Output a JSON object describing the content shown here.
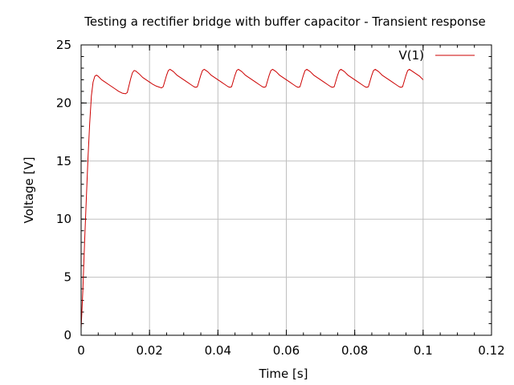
{
  "chart_data": {
    "type": "line",
    "title": "Testing a rectifier bridge with buffer capacitor - Transient response",
    "xlabel": "Time [s]",
    "ylabel": "Voltage [V]",
    "xlim": [
      0,
      0.12
    ],
    "ylim": [
      0,
      25
    ],
    "xticks": [
      0,
      0.02,
      0.04,
      0.06,
      0.08,
      0.1,
      0.12
    ],
    "xtick_labels": [
      "0",
      "0.02",
      "0.04",
      "0.06",
      "0.08",
      "0.1",
      "0.12"
    ],
    "yticks": [
      0,
      5,
      10,
      15,
      20,
      25
    ],
    "ytick_labels": [
      "0",
      "5",
      "10",
      "15",
      "20",
      "25"
    ],
    "grid": true,
    "legend_position": "top-right",
    "series": [
      {
        "name": "V(1)",
        "color": "#cc0000",
        "x": [
          0,
          0.0005,
          0.001,
          0.0015,
          0.002,
          0.0025,
          0.003,
          0.0035,
          0.004,
          0.0045,
          0.005,
          0.006,
          0.007,
          0.008,
          0.009,
          0.01,
          0.011,
          0.012,
          0.013,
          0.0135,
          0.014,
          0.0145,
          0.015,
          0.0155,
          0.016,
          0.017,
          0.018,
          0.019,
          0.02,
          0.021,
          0.022,
          0.023,
          0.0235,
          0.024,
          0.0245,
          0.025,
          0.0255,
          0.026,
          0.027,
          0.028,
          0.029,
          0.03,
          0.031,
          0.032,
          0.033,
          0.0335,
          0.034,
          0.0345,
          0.035,
          0.0355,
          0.036,
          0.037,
          0.038,
          0.039,
          0.04,
          0.041,
          0.042,
          0.043,
          0.0435,
          0.044,
          0.0445,
          0.045,
          0.0455,
          0.046,
          0.047,
          0.048,
          0.049,
          0.05,
          0.051,
          0.052,
          0.053,
          0.0535,
          0.054,
          0.0545,
          0.055,
          0.0555,
          0.056,
          0.057,
          0.058,
          0.059,
          0.06,
          0.061,
          0.062,
          0.063,
          0.0635,
          0.064,
          0.0645,
          0.065,
          0.0655,
          0.066,
          0.067,
          0.068,
          0.069,
          0.07,
          0.071,
          0.072,
          0.073,
          0.0735,
          0.074,
          0.0745,
          0.075,
          0.0755,
          0.076,
          0.077,
          0.078,
          0.079,
          0.08,
          0.081,
          0.082,
          0.083,
          0.0835,
          0.084,
          0.0845,
          0.085,
          0.0855,
          0.086,
          0.087,
          0.088,
          0.089,
          0.09,
          0.091,
          0.092,
          0.093,
          0.0935,
          0.094,
          0.0945,
          0.095,
          0.0955,
          0.096,
          0.097,
          0.098,
          0.099,
          0.1
        ],
        "y": [
          0.6,
          3.8,
          7.9,
          11.6,
          15.2,
          18.2,
          20.6,
          21.8,
          22.3,
          22.4,
          22.3,
          22.0,
          21.8,
          21.6,
          21.4,
          21.2,
          21.0,
          20.85,
          20.8,
          20.9,
          21.5,
          22.1,
          22.6,
          22.8,
          22.75,
          22.5,
          22.2,
          22.0,
          21.8,
          21.6,
          21.45,
          21.35,
          21.3,
          21.4,
          21.9,
          22.4,
          22.8,
          22.9,
          22.7,
          22.4,
          22.2,
          22.0,
          21.8,
          21.6,
          21.4,
          21.35,
          21.4,
          21.9,
          22.4,
          22.8,
          22.9,
          22.7,
          22.4,
          22.2,
          22.0,
          21.8,
          21.6,
          21.4,
          21.35,
          21.4,
          21.9,
          22.4,
          22.8,
          22.9,
          22.7,
          22.4,
          22.2,
          22.0,
          21.8,
          21.6,
          21.4,
          21.35,
          21.4,
          21.9,
          22.4,
          22.8,
          22.9,
          22.7,
          22.4,
          22.2,
          22.0,
          21.8,
          21.6,
          21.4,
          21.35,
          21.4,
          21.9,
          22.4,
          22.8,
          22.9,
          22.7,
          22.4,
          22.2,
          22.0,
          21.8,
          21.6,
          21.4,
          21.35,
          21.4,
          21.9,
          22.4,
          22.8,
          22.9,
          22.7,
          22.4,
          22.2,
          22.0,
          21.8,
          21.6,
          21.4,
          21.35,
          21.4,
          21.9,
          22.4,
          22.8,
          22.9,
          22.7,
          22.4,
          22.2,
          22.0,
          21.8,
          21.6,
          21.4,
          21.35,
          21.4,
          21.9,
          22.4,
          22.8,
          22.9,
          22.7,
          22.5,
          22.3,
          22.0
        ]
      }
    ]
  }
}
